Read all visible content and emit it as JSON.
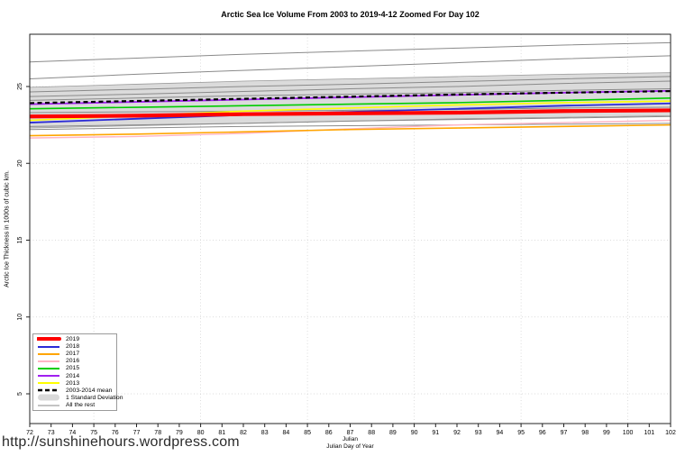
{
  "page": {
    "url_caption": "http://sunshinehours.wordpress.com"
  },
  "chart_data": {
    "type": "line",
    "title": "Arctic Sea Ice Volume From 2003 to 2019-4-12 Zoomed For Day 102",
    "ylabel": "Arctic Ice Thickness in 1000s of cubic km.",
    "xlabel_line1": "Julian",
    "xlabel_line2": "Julian Day of Year",
    "xlim": [
      72,
      102
    ],
    "ylim": [
      3.0,
      28.4
    ],
    "x_ticks": [
      72,
      73,
      74,
      75,
      76,
      77,
      78,
      79,
      80,
      81,
      82,
      83,
      84,
      85,
      86,
      87,
      88,
      89,
      90,
      91,
      92,
      93,
      94,
      95,
      96,
      97,
      98,
      99,
      100,
      101,
      102
    ],
    "y_ticks": [
      5,
      10,
      15,
      20,
      25
    ],
    "grid": {
      "style": "dotted",
      "x_lines": [
        75,
        80,
        85,
        90,
        95,
        100
      ],
      "y_lines": [
        5,
        10,
        15,
        20,
        25
      ]
    },
    "x": [
      72,
      77,
      82,
      87,
      92,
      97,
      102
    ],
    "band": {
      "name": "1 Standard Deviation",
      "color": "#DBDBDB",
      "edge_color": "#9a9a9a",
      "upper": [
        24.95,
        25.15,
        25.35,
        25.5,
        25.65,
        25.8,
        25.9
      ],
      "lower": [
        22.3,
        22.45,
        22.6,
        22.75,
        22.9,
        23.0,
        23.1
      ]
    },
    "series": [
      {
        "name": "2016",
        "color": "#FFB5C5",
        "width": 1.4,
        "dash": null,
        "values": [
          21.65,
          21.75,
          21.95,
          22.25,
          22.5,
          22.65,
          22.8
        ]
      },
      {
        "name": "2017",
        "color": "#FFA500",
        "width": 1.6,
        "dash": null,
        "values": [
          21.8,
          21.9,
          22.05,
          22.2,
          22.3,
          22.4,
          22.5
        ]
      },
      {
        "name": "2013",
        "color": "#FFFF00",
        "width": 1.6,
        "dash": null,
        "values": [
          22.8,
          23.1,
          23.4,
          23.6,
          23.8,
          23.95,
          24.05
        ]
      },
      {
        "name": "2015",
        "color": "#00CC00",
        "width": 1.6,
        "dash": null,
        "values": [
          23.55,
          23.65,
          23.75,
          23.85,
          23.95,
          24.1,
          24.25
        ]
      },
      {
        "name": "2018",
        "color": "#2B2BD6",
        "width": 1.8,
        "dash": null,
        "values": [
          22.65,
          22.9,
          23.15,
          23.35,
          23.55,
          23.75,
          23.9
        ]
      },
      {
        "name": "2019",
        "color": "#FF0000",
        "width": 4.2,
        "dash": null,
        "values": [
          23.05,
          23.1,
          23.2,
          23.25,
          23.3,
          23.4,
          23.45
        ]
      },
      {
        "name": "2014",
        "color": "#A020F0",
        "width": 1.8,
        "dash": null,
        "values": [
          23.85,
          24.0,
          24.15,
          24.3,
          24.45,
          24.6,
          24.72
        ]
      },
      {
        "name": "2003-2014 mean",
        "color": "#000000",
        "width": 2.2,
        "dash": "5,3.5",
        "values": [
          23.92,
          24.06,
          24.2,
          24.34,
          24.48,
          24.6,
          24.7
        ]
      }
    ],
    "all_the_rest": {
      "name": "All the rest",
      "color": "#8A8A8A",
      "width": 1,
      "lines": [
        [
          26.6,
          26.85,
          27.1,
          27.3,
          27.5,
          27.7,
          27.85
        ],
        [
          25.5,
          25.8,
          26.05,
          26.3,
          26.55,
          26.8,
          27.0
        ],
        [
          24.65,
          24.82,
          25.0,
          25.15,
          25.32,
          25.5,
          25.65
        ],
        [
          24.35,
          24.5,
          24.68,
          24.85,
          25.0,
          25.2,
          25.35
        ],
        [
          24.1,
          24.25,
          24.4,
          24.5,
          24.6,
          24.75,
          24.85
        ],
        [
          23.3,
          23.35,
          23.4,
          23.45,
          23.5,
          23.6,
          23.65
        ],
        [
          22.4,
          22.5,
          22.6,
          22.75,
          22.85,
          22.95,
          23.05
        ],
        [
          22.2,
          22.3,
          22.4,
          22.45,
          22.5,
          22.55,
          22.6
        ]
      ]
    },
    "legend": {
      "entries": [
        {
          "label": "2019",
          "color": "#FF0000",
          "kind": "line",
          "width": 4
        },
        {
          "label": "2018",
          "color": "#2B2BD6",
          "kind": "line",
          "width": 2
        },
        {
          "label": "2017",
          "color": "#FFA500",
          "kind": "line",
          "width": 2
        },
        {
          "label": "2016",
          "color": "#FFB5C5",
          "kind": "line",
          "width": 2
        },
        {
          "label": "2015",
          "color": "#00CC00",
          "kind": "line",
          "width": 2
        },
        {
          "label": "2014",
          "color": "#A020F0",
          "kind": "line",
          "width": 2
        },
        {
          "label": "2013",
          "color": "#FFFF00",
          "kind": "line",
          "width": 2
        },
        {
          "label": "2003-2014 mean",
          "color": "#000000",
          "kind": "dashed",
          "width": 2.4
        },
        {
          "label": "1 Standard Deviation",
          "color": "#D9D9D9",
          "kind": "band"
        },
        {
          "label": "All the rest",
          "color": "#8A8A8A",
          "kind": "line",
          "width": 1
        }
      ]
    }
  }
}
